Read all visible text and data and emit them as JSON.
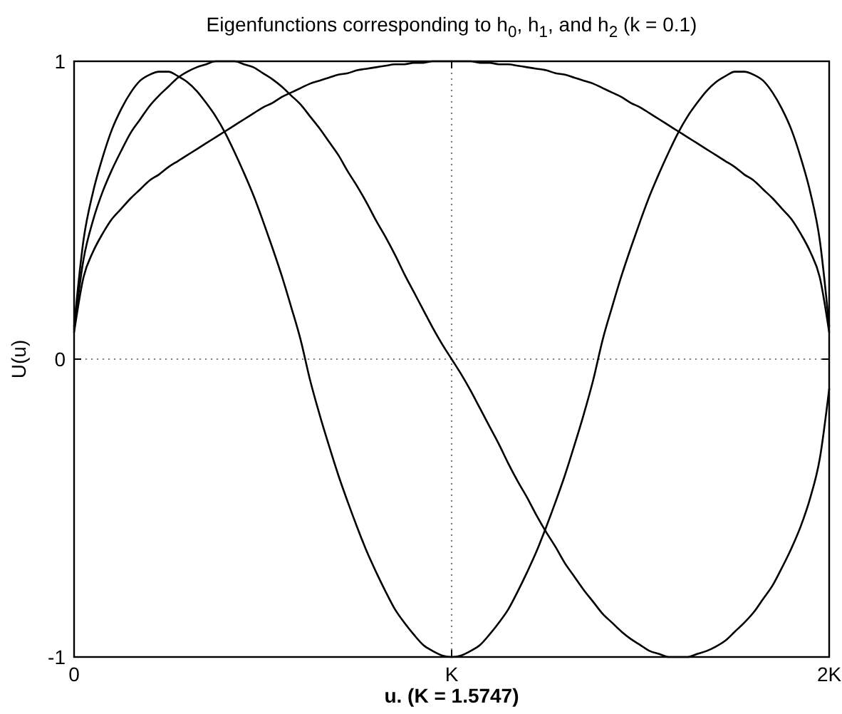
{
  "chart_data": {
    "type": "line",
    "title": "Eigenfunctions corresponding to h$_{0}$, h$_{1}$, and h$_{2}$ (k = 0.1)",
    "xlabel": "u. (K = 1.5747)",
    "ylabel": "U(u)",
    "categories": [
      "0",
      null,
      null,
      null,
      null,
      null,
      null,
      null,
      null,
      null,
      null,
      null,
      null,
      null,
      null,
      null,
      null,
      null,
      null,
      null,
      null,
      null,
      null,
      null,
      null,
      null,
      null,
      null,
      null,
      null,
      null,
      null,
      null,
      null,
      null,
      null,
      null,
      null,
      null,
      null,
      "K",
      null,
      null,
      null,
      null,
      null,
      null,
      null,
      null,
      null,
      null,
      null,
      null,
      null,
      null,
      null,
      null,
      null,
      null,
      null,
      null,
      null,
      null,
      null,
      null,
      null,
      null,
      null,
      null,
      null,
      null,
      null,
      null,
      null,
      null,
      null,
      null,
      null,
      null,
      null,
      "2K"
    ],
    "series": [
      {
        "color": "#000000",
        "values": [
          0.09,
          0.275,
          0.36,
          0.42,
          0.47,
          0.505,
          0.54,
          0.57,
          0.6,
          0.62,
          0.645,
          0.665,
          0.685,
          0.705,
          0.725,
          0.745,
          0.765,
          0.785,
          0.805,
          0.825,
          0.845,
          0.86,
          0.88,
          0.895,
          0.91,
          0.925,
          0.935,
          0.945,
          0.955,
          0.96,
          0.97,
          0.975,
          0.98,
          0.985,
          0.99,
          0.99,
          0.995,
          0.995,
          1,
          1,
          1,
          1,
          1,
          0.995,
          0.995,
          0.99,
          0.99,
          0.985,
          0.98,
          0.975,
          0.97,
          0.96,
          0.955,
          0.945,
          0.935,
          0.925,
          0.91,
          0.895,
          0.88,
          0.86,
          0.845,
          0.825,
          0.805,
          0.785,
          0.765,
          0.745,
          0.725,
          0.705,
          0.685,
          0.665,
          0.645,
          0.62,
          0.6,
          0.57,
          0.54,
          0.505,
          0.47,
          0.42,
          0.36,
          0.275,
          0.09
        ]
      },
      {
        "color": "#000000",
        "values": [
          0.1,
          0.335,
          0.465,
          0.56,
          0.635,
          0.7,
          0.76,
          0.805,
          0.85,
          0.885,
          0.915,
          0.945,
          0.965,
          0.98,
          0.99,
          1,
          1,
          1,
          0.99,
          0.98,
          0.96,
          0.94,
          0.915,
          0.885,
          0.855,
          0.815,
          0.775,
          0.73,
          0.685,
          0.63,
          0.58,
          0.525,
          0.465,
          0.41,
          0.35,
          0.285,
          0.225,
          0.165,
          0.105,
          0.05,
          0,
          -0.05,
          -0.105,
          -0.165,
          -0.225,
          -0.285,
          -0.35,
          -0.41,
          -0.465,
          -0.525,
          -0.58,
          -0.63,
          -0.685,
          -0.73,
          -0.775,
          -0.815,
          -0.855,
          -0.885,
          -0.915,
          -0.94,
          -0.96,
          -0.98,
          -0.99,
          -1,
          -1,
          -1,
          -0.99,
          -0.98,
          -0.965,
          -0.945,
          -0.915,
          -0.885,
          -0.85,
          -0.805,
          -0.76,
          -0.7,
          -0.635,
          -0.56,
          -0.465,
          -0.335,
          -0.1
        ]
      },
      {
        "color": "#000000",
        "values": [
          0.11,
          0.4,
          0.56,
          0.675,
          0.77,
          0.84,
          0.895,
          0.935,
          0.955,
          0.965,
          0.965,
          0.95,
          0.93,
          0.9,
          0.86,
          0.815,
          0.76,
          0.695,
          0.625,
          0.55,
          0.465,
          0.375,
          0.28,
          0.175,
          0.065,
          -0.07,
          -0.185,
          -0.29,
          -0.39,
          -0.48,
          -0.565,
          -0.645,
          -0.715,
          -0.78,
          -0.84,
          -0.885,
          -0.925,
          -0.96,
          -0.98,
          -0.995,
          -1,
          -0.995,
          -0.98,
          -0.96,
          -0.925,
          -0.885,
          -0.84,
          -0.78,
          -0.715,
          -0.645,
          -0.565,
          -0.48,
          -0.39,
          -0.29,
          -0.185,
          -0.07,
          0.065,
          0.175,
          0.28,
          0.375,
          0.465,
          0.55,
          0.625,
          0.695,
          0.76,
          0.815,
          0.86,
          0.9,
          0.93,
          0.95,
          0.965,
          0.965,
          0.955,
          0.935,
          0.895,
          0.84,
          0.77,
          0.675,
          0.56,
          0.4,
          0.11
        ]
      }
    ],
    "ylim": [
      -1,
      1
    ],
    "yticks": [
      -1,
      0,
      1
    ],
    "grid": true,
    "line_style": "solid"
  }
}
